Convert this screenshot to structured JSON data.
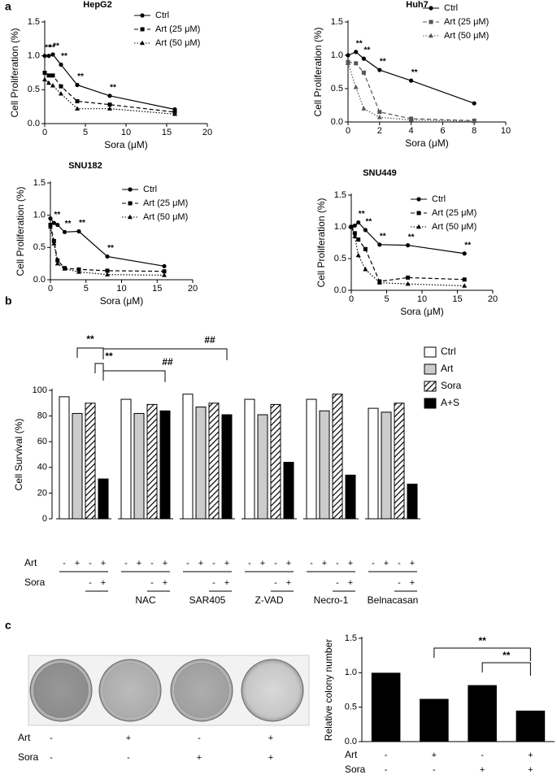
{
  "panel_labels": [
    "a",
    "b",
    "c"
  ],
  "chart_data": [
    {
      "type": "line",
      "title": "HepG2",
      "x_label": "Sora (μM)",
      "y_label": "Cell Proliferation (%)",
      "x": [
        0,
        0.5,
        1,
        2,
        4,
        8,
        16
      ],
      "series": [
        {
          "name": "Ctrl",
          "color": "#000000",
          "marker": "circle",
          "line_style": "solid",
          "values": [
            1.0,
            1.0,
            1.02,
            0.87,
            0.57,
            0.41,
            0.21
          ]
        },
        {
          "name": "Art (25 μM)",
          "color": "#000000",
          "marker": "square",
          "line_style": "dashed",
          "values": [
            0.75,
            0.71,
            0.71,
            0.55,
            0.33,
            0.28,
            0.17
          ]
        },
        {
          "name": "Art (50 μM)",
          "color": "#000000",
          "marker": "triangle",
          "line_style": "dotted",
          "values": [
            0.65,
            0.6,
            0.56,
            0.44,
            0.22,
            0.22,
            0.14
          ]
        }
      ],
      "significance": [
        "**",
        "**",
        "**",
        "**",
        "**",
        "**",
        null
      ],
      "xlim": [
        0,
        20
      ],
      "xticks": [
        0,
        5,
        10,
        15,
        20
      ],
      "ylim": [
        0,
        1.5
      ],
      "yticks": [
        {
          "value": 0,
          "label": "0.0"
        },
        {
          "value": 0.5,
          "label": "0.5"
        },
        {
          "value": 1,
          "label": "1.0"
        },
        {
          "value": 1.5,
          "label": "1.5"
        }
      ]
    },
    {
      "type": "line",
      "title": "Huh7",
      "x_label": "Sora (μM)",
      "y_label": "Cell Proliferation (%)",
      "x": [
        0,
        0.5,
        1,
        2,
        4,
        8
      ],
      "series": [
        {
          "name": "Ctrl",
          "color": "#000000",
          "marker": "circle",
          "line_style": "solid",
          "values": [
            1.0,
            1.05,
            0.95,
            0.78,
            0.62,
            0.28
          ]
        },
        {
          "name": "Art (25 μM)",
          "color": "#555555",
          "marker": "square",
          "line_style": "dashed",
          "values": [
            0.9,
            0.88,
            0.74,
            0.15,
            0.05,
            0.02
          ]
        },
        {
          "name": "Art (50 μM)",
          "color": "#555555",
          "marker": "triangle",
          "line_style": "dotted",
          "values": [
            0.88,
            0.52,
            0.2,
            0.07,
            0.03,
            0.01
          ]
        }
      ],
      "significance": [
        null,
        "**",
        "**",
        "**",
        "**",
        null
      ],
      "xlim": [
        0,
        10
      ],
      "xticks": [
        0,
        2,
        4,
        6,
        8,
        10
      ],
      "ylim": [
        0,
        1.5
      ],
      "yticks": [
        {
          "value": 0,
          "label": "0.0"
        },
        {
          "value": 0.5,
          "label": "0.5"
        },
        {
          "value": 1,
          "label": "1.0"
        },
        {
          "value": 1.5,
          "label": "1.5"
        }
      ]
    },
    {
      "type": "line",
      "title": "SNU182",
      "x_label": "Sora (μM)",
      "y_label": "Cell Proliferation (%)",
      "x": [
        0,
        0.5,
        1,
        2,
        4,
        8,
        16
      ],
      "series": [
        {
          "name": "Ctrl",
          "color": "#000000",
          "marker": "circle",
          "line_style": "solid",
          "values": [
            0.95,
            0.88,
            0.85,
            0.74,
            0.75,
            0.36,
            0.21
          ]
        },
        {
          "name": "Art (25 μM)",
          "color": "#000000",
          "marker": "square",
          "line_style": "dashed",
          "values": [
            0.85,
            0.6,
            0.3,
            0.18,
            0.16,
            0.14,
            0.13
          ]
        },
        {
          "name": "Art (50 μM)",
          "color": "#000000",
          "marker": "triangle",
          "line_style": "dotted",
          "values": [
            0.82,
            0.56,
            0.25,
            0.17,
            0.12,
            0.08,
            0.07
          ]
        }
      ],
      "significance": [
        null,
        "**",
        null,
        "**",
        "**",
        "**",
        null
      ],
      "xlim": [
        0,
        20
      ],
      "xticks": [
        0,
        5,
        10,
        15,
        20
      ],
      "ylim": [
        0,
        1.5
      ],
      "yticks": [
        {
          "value": 0,
          "label": "0.0"
        },
        {
          "value": 0.5,
          "label": "0.5"
        },
        {
          "value": 1,
          "label": "1.0"
        },
        {
          "value": 1.5,
          "label": "1.5"
        }
      ]
    },
    {
      "type": "line",
      "title": "SNU449",
      "x_label": "Sora (μM)",
      "y_label": "Cell Proliferation (%)",
      "x": [
        0,
        0.5,
        1,
        2,
        4,
        8,
        16
      ],
      "series": [
        {
          "name": "Ctrl",
          "color": "#000000",
          "marker": "circle",
          "line_style": "solid",
          "values": [
            1.0,
            1.02,
            1.07,
            0.95,
            0.72,
            0.71,
            0.58
          ]
        },
        {
          "name": "Art (25 μM)",
          "color": "#000000",
          "marker": "square",
          "line_style": "dashed",
          "values": [
            1.0,
            0.9,
            0.8,
            0.65,
            0.14,
            0.2,
            0.17
          ]
        },
        {
          "name": "Art (50 μM)",
          "color": "#000000",
          "marker": "triangle",
          "line_style": "dotted",
          "values": [
            1.0,
            0.85,
            0.55,
            0.33,
            0.12,
            0.1,
            0.07
          ]
        }
      ],
      "significance": [
        null,
        null,
        "**",
        "**",
        "**",
        "**",
        "**"
      ],
      "xlim": [
        0,
        20
      ],
      "xticks": [
        0,
        5,
        10,
        15,
        20
      ],
      "ylim": [
        0,
        1.5
      ],
      "yticks": [
        {
          "value": 0,
          "label": "0.0"
        },
        {
          "value": 0.5,
          "label": "0.5"
        },
        {
          "value": 1,
          "label": "1.0"
        },
        {
          "value": 1.5,
          "label": "1.5"
        }
      ]
    },
    {
      "type": "grouped_bar",
      "y_label": "Cell Survival (%)",
      "categories": [
        null,
        "NAC",
        "SAR405",
        "Z-VAD",
        "Necro-1",
        "Belnacasan"
      ],
      "series": [
        {
          "name": "Ctrl",
          "color": "#ffffff",
          "values": [
            95,
            93,
            97,
            93,
            93,
            86
          ]
        },
        {
          "name": "Art",
          "color": "#cccccc",
          "values": [
            82,
            82,
            87,
            81,
            84,
            83
          ]
        },
        {
          "name": "Sora",
          "color": "#ffffff",
          "hatch": true,
          "values": [
            90,
            89,
            90,
            89,
            97,
            90
          ]
        },
        {
          "name": "A+S",
          "color": "#000000",
          "values": [
            31,
            84,
            81,
            44,
            34,
            27
          ]
        }
      ],
      "treatments": [
        {
          "label": "Art",
          "signs": [
            "-",
            "+",
            "-",
            "+"
          ]
        },
        {
          "label": "Sora",
          "signs": [
            "-",
            "+"
          ]
        }
      ],
      "annotations": [
        "**",
        "**",
        "##",
        "##"
      ],
      "ylim": [
        0,
        100
      ],
      "yticks": [
        0,
        20,
        40,
        60,
        80,
        100
      ]
    },
    {
      "type": "bar",
      "y_label": "Relative colony number",
      "color": "#000000",
      "categories": [
        null,
        null,
        null,
        null
      ],
      "values": [
        1.0,
        0.62,
        0.82,
        0.45
      ],
      "treatments": [
        {
          "label": "Art",
          "signs": [
            "-",
            "+",
            "-",
            "+"
          ]
        },
        {
          "label": "Sora",
          "signs": [
            "-",
            "-",
            "+",
            "+"
          ]
        }
      ],
      "annotations": [
        "**",
        "**"
      ],
      "ylim": [
        0,
        1.5
      ],
      "yticks": [
        {
          "value": 0,
          "label": "0.0"
        },
        {
          "value": 0.5,
          "label": "0.5"
        },
        {
          "value": 1,
          "label": "1.0"
        },
        {
          "value": 1.5,
          "label": "1.5"
        }
      ]
    }
  ]
}
